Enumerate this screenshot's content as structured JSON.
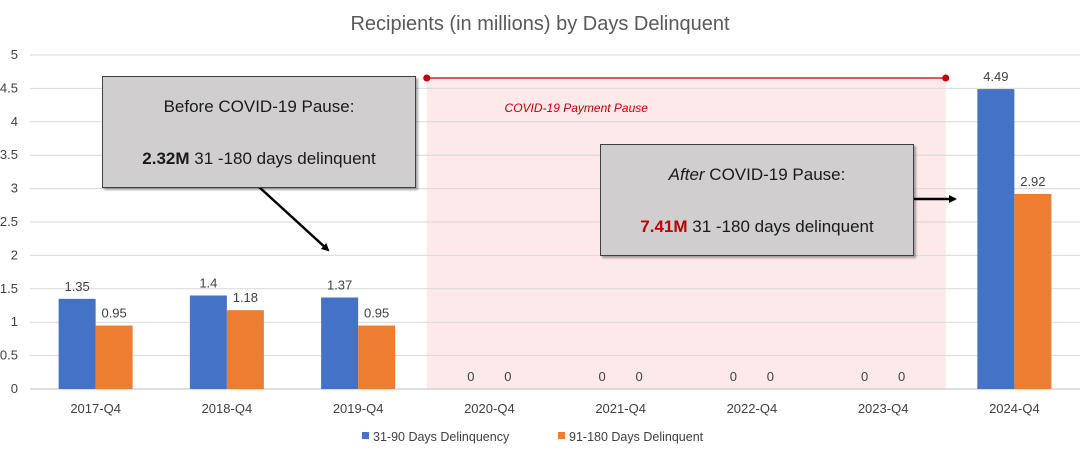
{
  "chart_data": {
    "type": "bar",
    "title": "Recipients (in millions) by Days Delinquent",
    "xlabel": "",
    "ylabel": "",
    "ylim": [
      0,
      5
    ],
    "yticks": [
      "0",
      "0.5",
      "1",
      "1.5",
      "2",
      "2.5",
      "3",
      "3.5",
      "4",
      "4.5",
      "5"
    ],
    "grid": true,
    "legend_position": "bottom",
    "categories": [
      "2017-Q4",
      "2018-Q4",
      "2019-Q4",
      "2020-Q4",
      "2021-Q4",
      "2022-Q4",
      "2023-Q4",
      "2024-Q4"
    ],
    "series": [
      {
        "name": "31-90 Days Delinquency",
        "color": "#4472c4",
        "values": [
          1.35,
          1.4,
          1.37,
          0,
          0,
          0,
          0,
          4.49
        ],
        "labels": [
          "1.35",
          "1.4",
          "1.37",
          "0",
          "0",
          "0",
          "0",
          "4.49"
        ]
      },
      {
        "name": "91-180 Days Delinquent",
        "color": "#ed7d31",
        "values": [
          0.95,
          1.18,
          0.95,
          0,
          0,
          0,
          0,
          2.92
        ],
        "labels": [
          "0.95",
          "1.18",
          "0.95",
          "0",
          "0",
          "0",
          "0",
          "2.92"
        ]
      }
    ],
    "pause_region": {
      "label": "COVID-19 Payment Pause",
      "from_category": "2020-Q4",
      "to_category": "2023-Q4",
      "fill_color": "#fde9e9",
      "line_color": "#c00000"
    },
    "annotations": {
      "before": {
        "heading": "Before COVID-19 Pause:",
        "value": "2.32M",
        "text": " 31 -180 days delinquent"
      },
      "after": {
        "heading_italic": "After",
        "heading_rest": " COVID-19 Pause:",
        "value": "7.41M",
        "text": " 31 -180 days delinquent"
      }
    }
  }
}
